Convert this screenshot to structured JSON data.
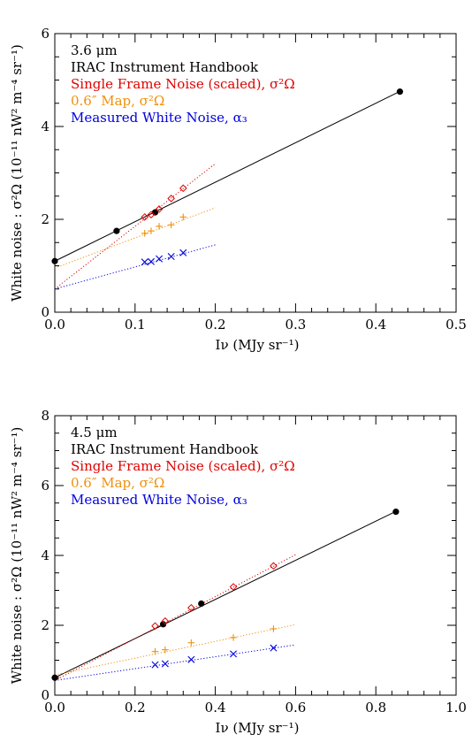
{
  "chart_data": [
    {
      "type": "scatter",
      "xlabel": "Iν (MJy sr⁻¹)",
      "ylabel": "White noise : σ²Ω (10⁻¹¹ nW² m⁻⁴ sr⁻¹)",
      "xlim": [
        0,
        0.5
      ],
      "ylim": [
        0,
        6
      ],
      "xticks": [
        "0.0",
        "0.1",
        "0.2",
        "0.3",
        "0.4",
        "0.5"
      ],
      "yticks": [
        "0",
        "2",
        "4",
        "6"
      ],
      "legend": [
        "3.6 μm",
        "IRAC Instrument Handbook",
        "Single Frame Noise (scaled), σ²Ω",
        "0.6″ Map, σ²Ω",
        "Measured White Noise, α₃"
      ],
      "legend_colors": [
        "#000000",
        "#000000",
        "#e00000",
        "#f0900a",
        "#0000e0"
      ],
      "series": [
        {
          "marker": "dot",
          "color": "#000000",
          "fit": [
            1.1,
            8.5
          ],
          "fit_range": [
            0,
            0.43
          ],
          "fit_style": "solid",
          "x": [
            0.0,
            0.077,
            0.125,
            0.43
          ],
          "y": [
            1.1,
            1.75,
            2.15,
            4.75
          ]
        },
        {
          "marker": "diamond",
          "color": "#e00000",
          "fit": [
            0.5,
            13.5
          ],
          "fit_range": [
            0,
            0.2
          ],
          "fit_style": "dotted",
          "x": [
            0.112,
            0.12,
            0.13,
            0.145,
            0.16
          ],
          "y": [
            2.05,
            2.1,
            2.22,
            2.45,
            2.67
          ]
        },
        {
          "marker": "plus",
          "color": "#f0900a",
          "fit": [
            0.95,
            6.5
          ],
          "fit_range": [
            0,
            0.2
          ],
          "fit_style": "dotted",
          "x": [
            0.112,
            0.12,
            0.13,
            0.145,
            0.16
          ],
          "y": [
            1.7,
            1.75,
            1.85,
            1.88,
            2.05
          ]
        },
        {
          "marker": "x",
          "color": "#0000e0",
          "fit": [
            0.5,
            4.75
          ],
          "fit_range": [
            0,
            0.2
          ],
          "fit_style": "dotted",
          "x": [
            0.112,
            0.12,
            0.13,
            0.145,
            0.16
          ],
          "y": [
            1.08,
            1.09,
            1.15,
            1.2,
            1.28
          ]
        }
      ]
    },
    {
      "type": "scatter",
      "xlabel": "Iν (MJy sr⁻¹)",
      "ylabel": "White noise : σ²Ω (10⁻¹¹ nW² m⁻⁴ sr⁻¹)",
      "xlim": [
        0,
        1.0
      ],
      "ylim": [
        0,
        8
      ],
      "xticks": [
        "0.0",
        "0.2",
        "0.4",
        "0.6",
        "0.8",
        "1.0"
      ],
      "yticks": [
        "0",
        "2",
        "4",
        "6",
        "8"
      ],
      "legend": [
        "4.5 μm",
        "IRAC Instrument Handbook",
        "Single Frame Noise (scaled), σ²Ω",
        "0.6″ Map, σ²Ω",
        "Measured White Noise, α₃"
      ],
      "legend_colors": [
        "#000000",
        "#000000",
        "#e00000",
        "#f0900a",
        "#0000e0"
      ],
      "series": [
        {
          "marker": "dot",
          "color": "#000000",
          "fit": [
            0.5,
            5.6
          ],
          "fit_range": [
            0,
            0.85
          ],
          "fit_style": "solid",
          "x": [
            0.0,
            0.27,
            0.365,
            0.85
          ],
          "y": [
            0.5,
            2.03,
            2.62,
            5.25
          ]
        },
        {
          "marker": "diamond",
          "color": "#e00000",
          "fit": [
            0.42,
            6.0
          ],
          "fit_range": [
            0,
            0.6
          ],
          "fit_style": "dotted",
          "x": [
            0.25,
            0.275,
            0.34,
            0.445,
            0.545
          ],
          "y": [
            1.98,
            2.12,
            2.5,
            3.1,
            3.7
          ]
        },
        {
          "marker": "plus",
          "color": "#f0900a",
          "fit": [
            0.58,
            2.4
          ],
          "fit_range": [
            0,
            0.6
          ],
          "fit_style": "dotted",
          "x": [
            0.25,
            0.275,
            0.34,
            0.445,
            0.545
          ],
          "y": [
            1.25,
            1.3,
            1.5,
            1.65,
            1.9
          ]
        },
        {
          "marker": "x",
          "color": "#0000e0",
          "fit": [
            0.42,
            1.7
          ],
          "fit_range": [
            0,
            0.6
          ],
          "fit_style": "dotted",
          "x": [
            0.25,
            0.275,
            0.34,
            0.445,
            0.545
          ],
          "y": [
            0.87,
            0.9,
            1.02,
            1.18,
            1.35
          ]
        }
      ]
    }
  ]
}
